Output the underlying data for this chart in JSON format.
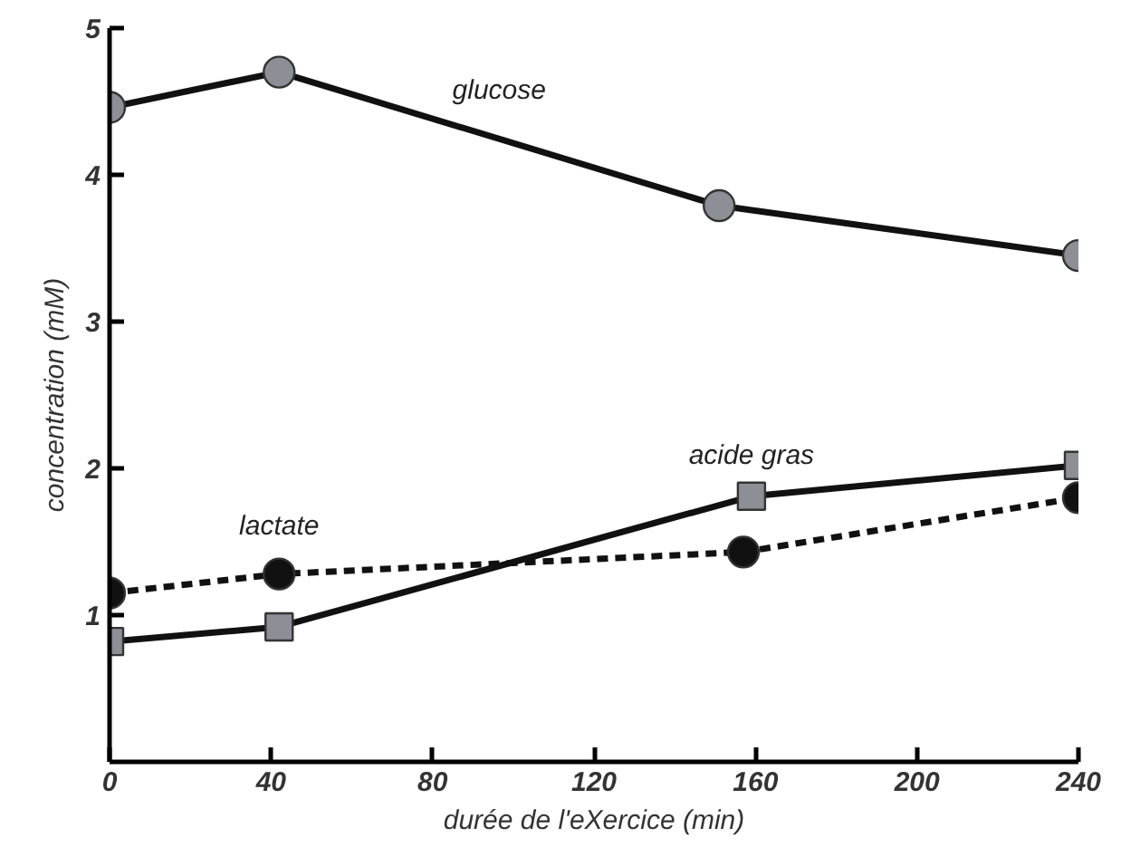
{
  "chart_data": {
    "type": "line",
    "xlabel": "durée de l'eXercice (min)",
    "ylabel": "concentration (mM)",
    "xlim": [
      0,
      240
    ],
    "xticks": [
      0,
      40,
      80,
      120,
      160,
      200,
      240
    ],
    "ylim": [
      0,
      5
    ],
    "yticks": [
      1,
      2,
      3,
      4,
      5
    ],
    "grid": false,
    "legend": false,
    "series": [
      {
        "name": "glucose",
        "color": "#8c8f96",
        "marker": "circle",
        "line_style": "solid",
        "x": [
          0,
          42,
          151,
          240
        ],
        "values": [
          4.46,
          4.7,
          3.79,
          3.45
        ]
      },
      {
        "name": "lactate",
        "color": "#111111",
        "marker": "circle",
        "line_style": "dashed",
        "x": [
          0,
          42,
          157,
          240
        ],
        "values": [
          1.15,
          1.28,
          1.43,
          1.8
        ]
      },
      {
        "name": "acide gras",
        "color": "#8c8f96",
        "marker": "square",
        "line_style": "solid",
        "x": [
          0,
          42,
          159,
          240
        ],
        "values": [
          0.82,
          0.92,
          1.81,
          2.02
        ]
      }
    ]
  }
}
